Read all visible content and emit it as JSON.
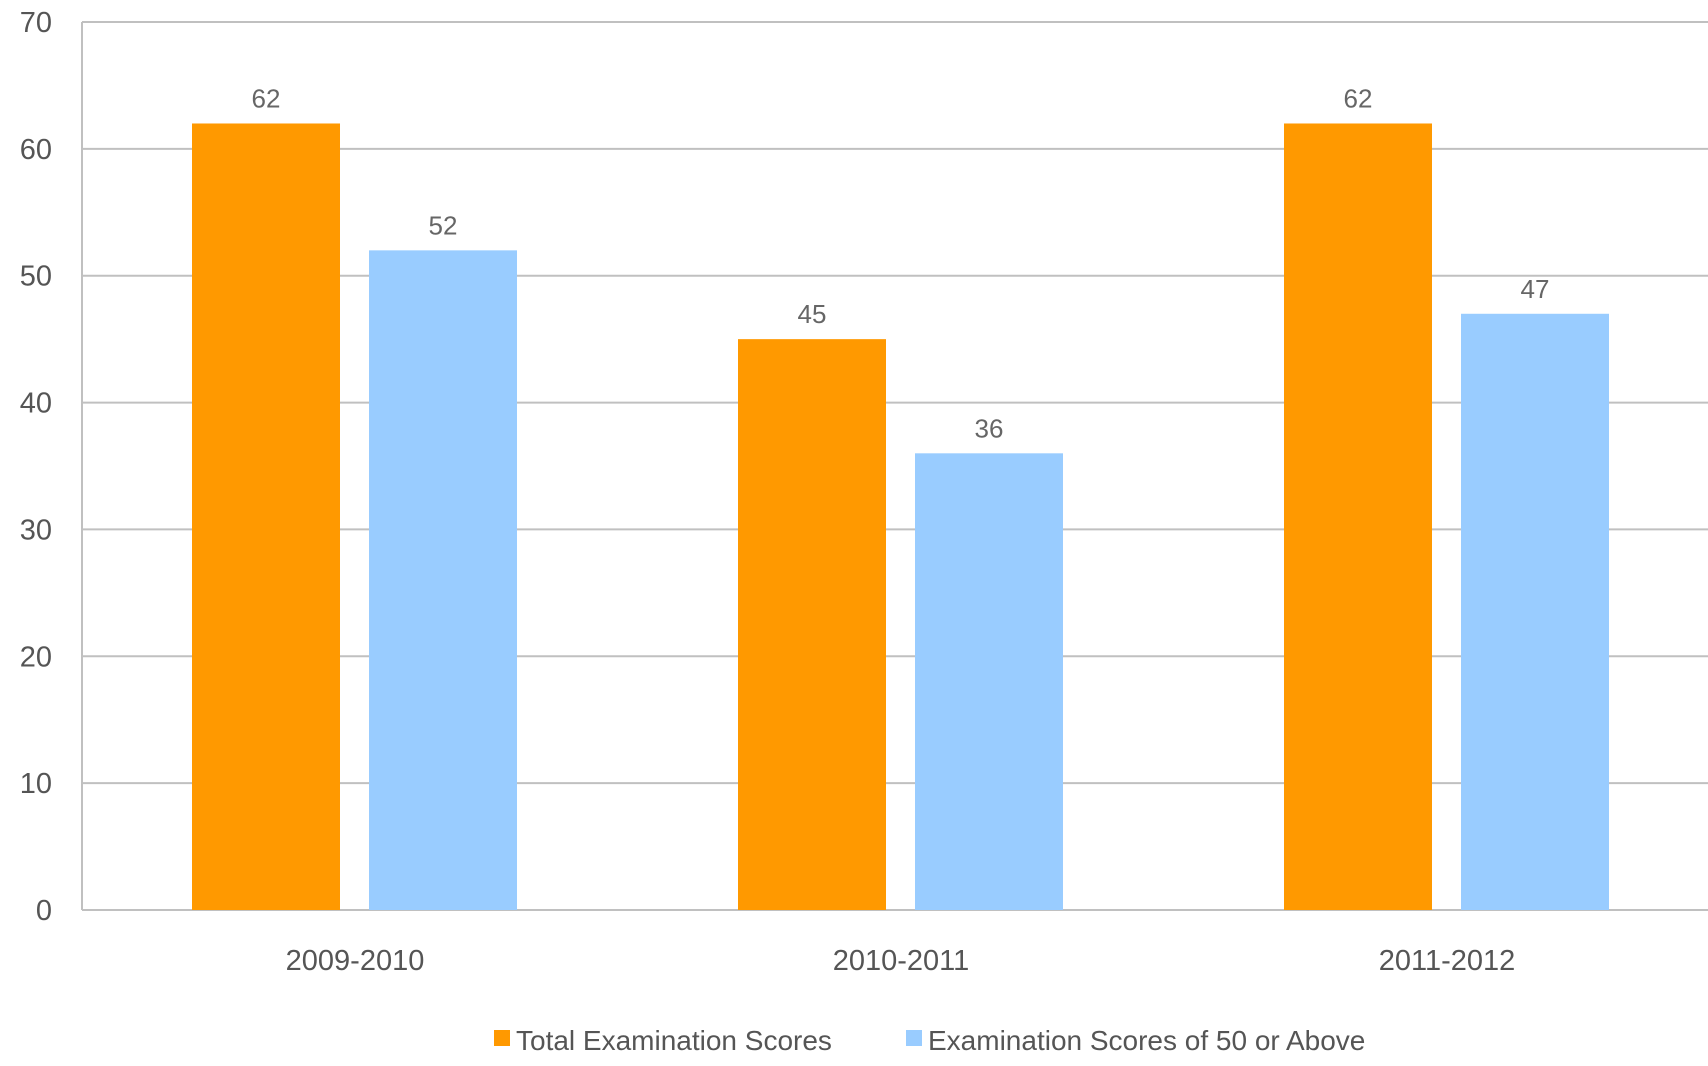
{
  "chart_data": {
    "type": "bar",
    "title": "",
    "xlabel": "",
    "ylabel": "",
    "categories": [
      "2009-2010",
      "2010-2011",
      "2011-2012"
    ],
    "series": [
      {
        "name": "Total Examination Scores",
        "color": "#FF9900",
        "values": [
          62,
          45,
          62
        ],
        "labels": [
          "62",
          "45",
          "62"
        ]
      },
      {
        "name": "Examination Scores of 50 or Above",
        "color": "#99CCFF",
        "values": [
          52,
          36,
          47
        ],
        "labels": [
          "52",
          "36",
          "47"
        ]
      }
    ],
    "ylim": [
      0,
      70
    ],
    "yticks": [
      0,
      10,
      20,
      30,
      40,
      50,
      60,
      70
    ],
    "ytick_labels": [
      "0",
      "10",
      "20",
      "30",
      "40",
      "50",
      "60",
      "70"
    ],
    "grid": true,
    "legend_position": "bottom",
    "gridline_color": "#C0C0C0"
  }
}
